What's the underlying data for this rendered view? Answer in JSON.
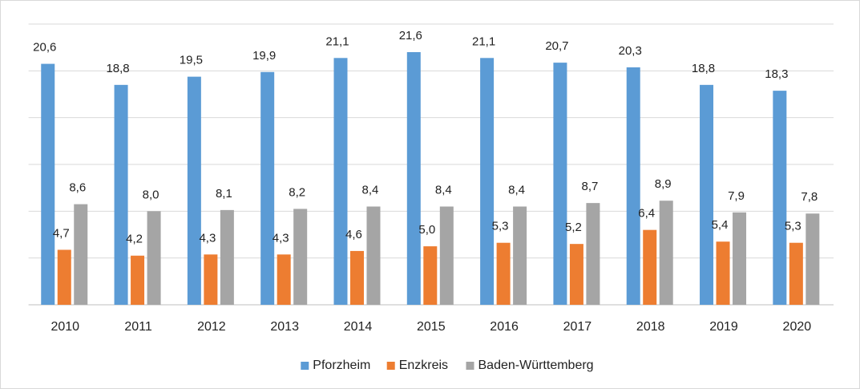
{
  "chart_data": {
    "type": "bar",
    "categories": [
      "2010",
      "2011",
      "2012",
      "2013",
      "2014",
      "2015",
      "2016",
      "2017",
      "2018",
      "2019",
      "2020"
    ],
    "series": [
      {
        "name": "Pforzheim",
        "color": "#5b9bd5",
        "values": [
          20.6,
          18.8,
          19.5,
          19.9,
          21.1,
          21.6,
          21.1,
          20.7,
          20.3,
          18.8,
          18.3
        ],
        "value_labels": [
          "20,6",
          "18,8",
          "19,5",
          "19,9",
          "21,1",
          "21,6",
          "21,1",
          "20,7",
          "20,3",
          "18,8",
          "18,3"
        ]
      },
      {
        "name": "Enzkreis",
        "color": "#ed7d31",
        "values": [
          4.7,
          4.2,
          4.3,
          4.3,
          4.6,
          5.0,
          5.3,
          5.2,
          6.4,
          5.4,
          5.3
        ],
        "value_labels": [
          "4,7",
          "4,2",
          "4,3",
          "4,3",
          "4,6",
          "5,0",
          "5,3",
          "5,2",
          "6,4",
          "5,4",
          "5,3"
        ]
      },
      {
        "name": "Baden-Württemberg",
        "color": "#a5a5a5",
        "values": [
          8.6,
          8.0,
          8.1,
          8.2,
          8.4,
          8.4,
          8.4,
          8.7,
          8.9,
          7.9,
          7.8
        ],
        "value_labels": [
          "8,6",
          "8,0",
          "8,1",
          "8,2",
          "8,4",
          "8,4",
          "8,4",
          "8,7",
          "8,9",
          "7,9",
          "7,8"
        ]
      }
    ],
    "ylim": [
      0,
      24
    ],
    "yticks": [
      0,
      4,
      8,
      12,
      16,
      20,
      24
    ],
    "grid": true,
    "legend": "bottom"
  }
}
